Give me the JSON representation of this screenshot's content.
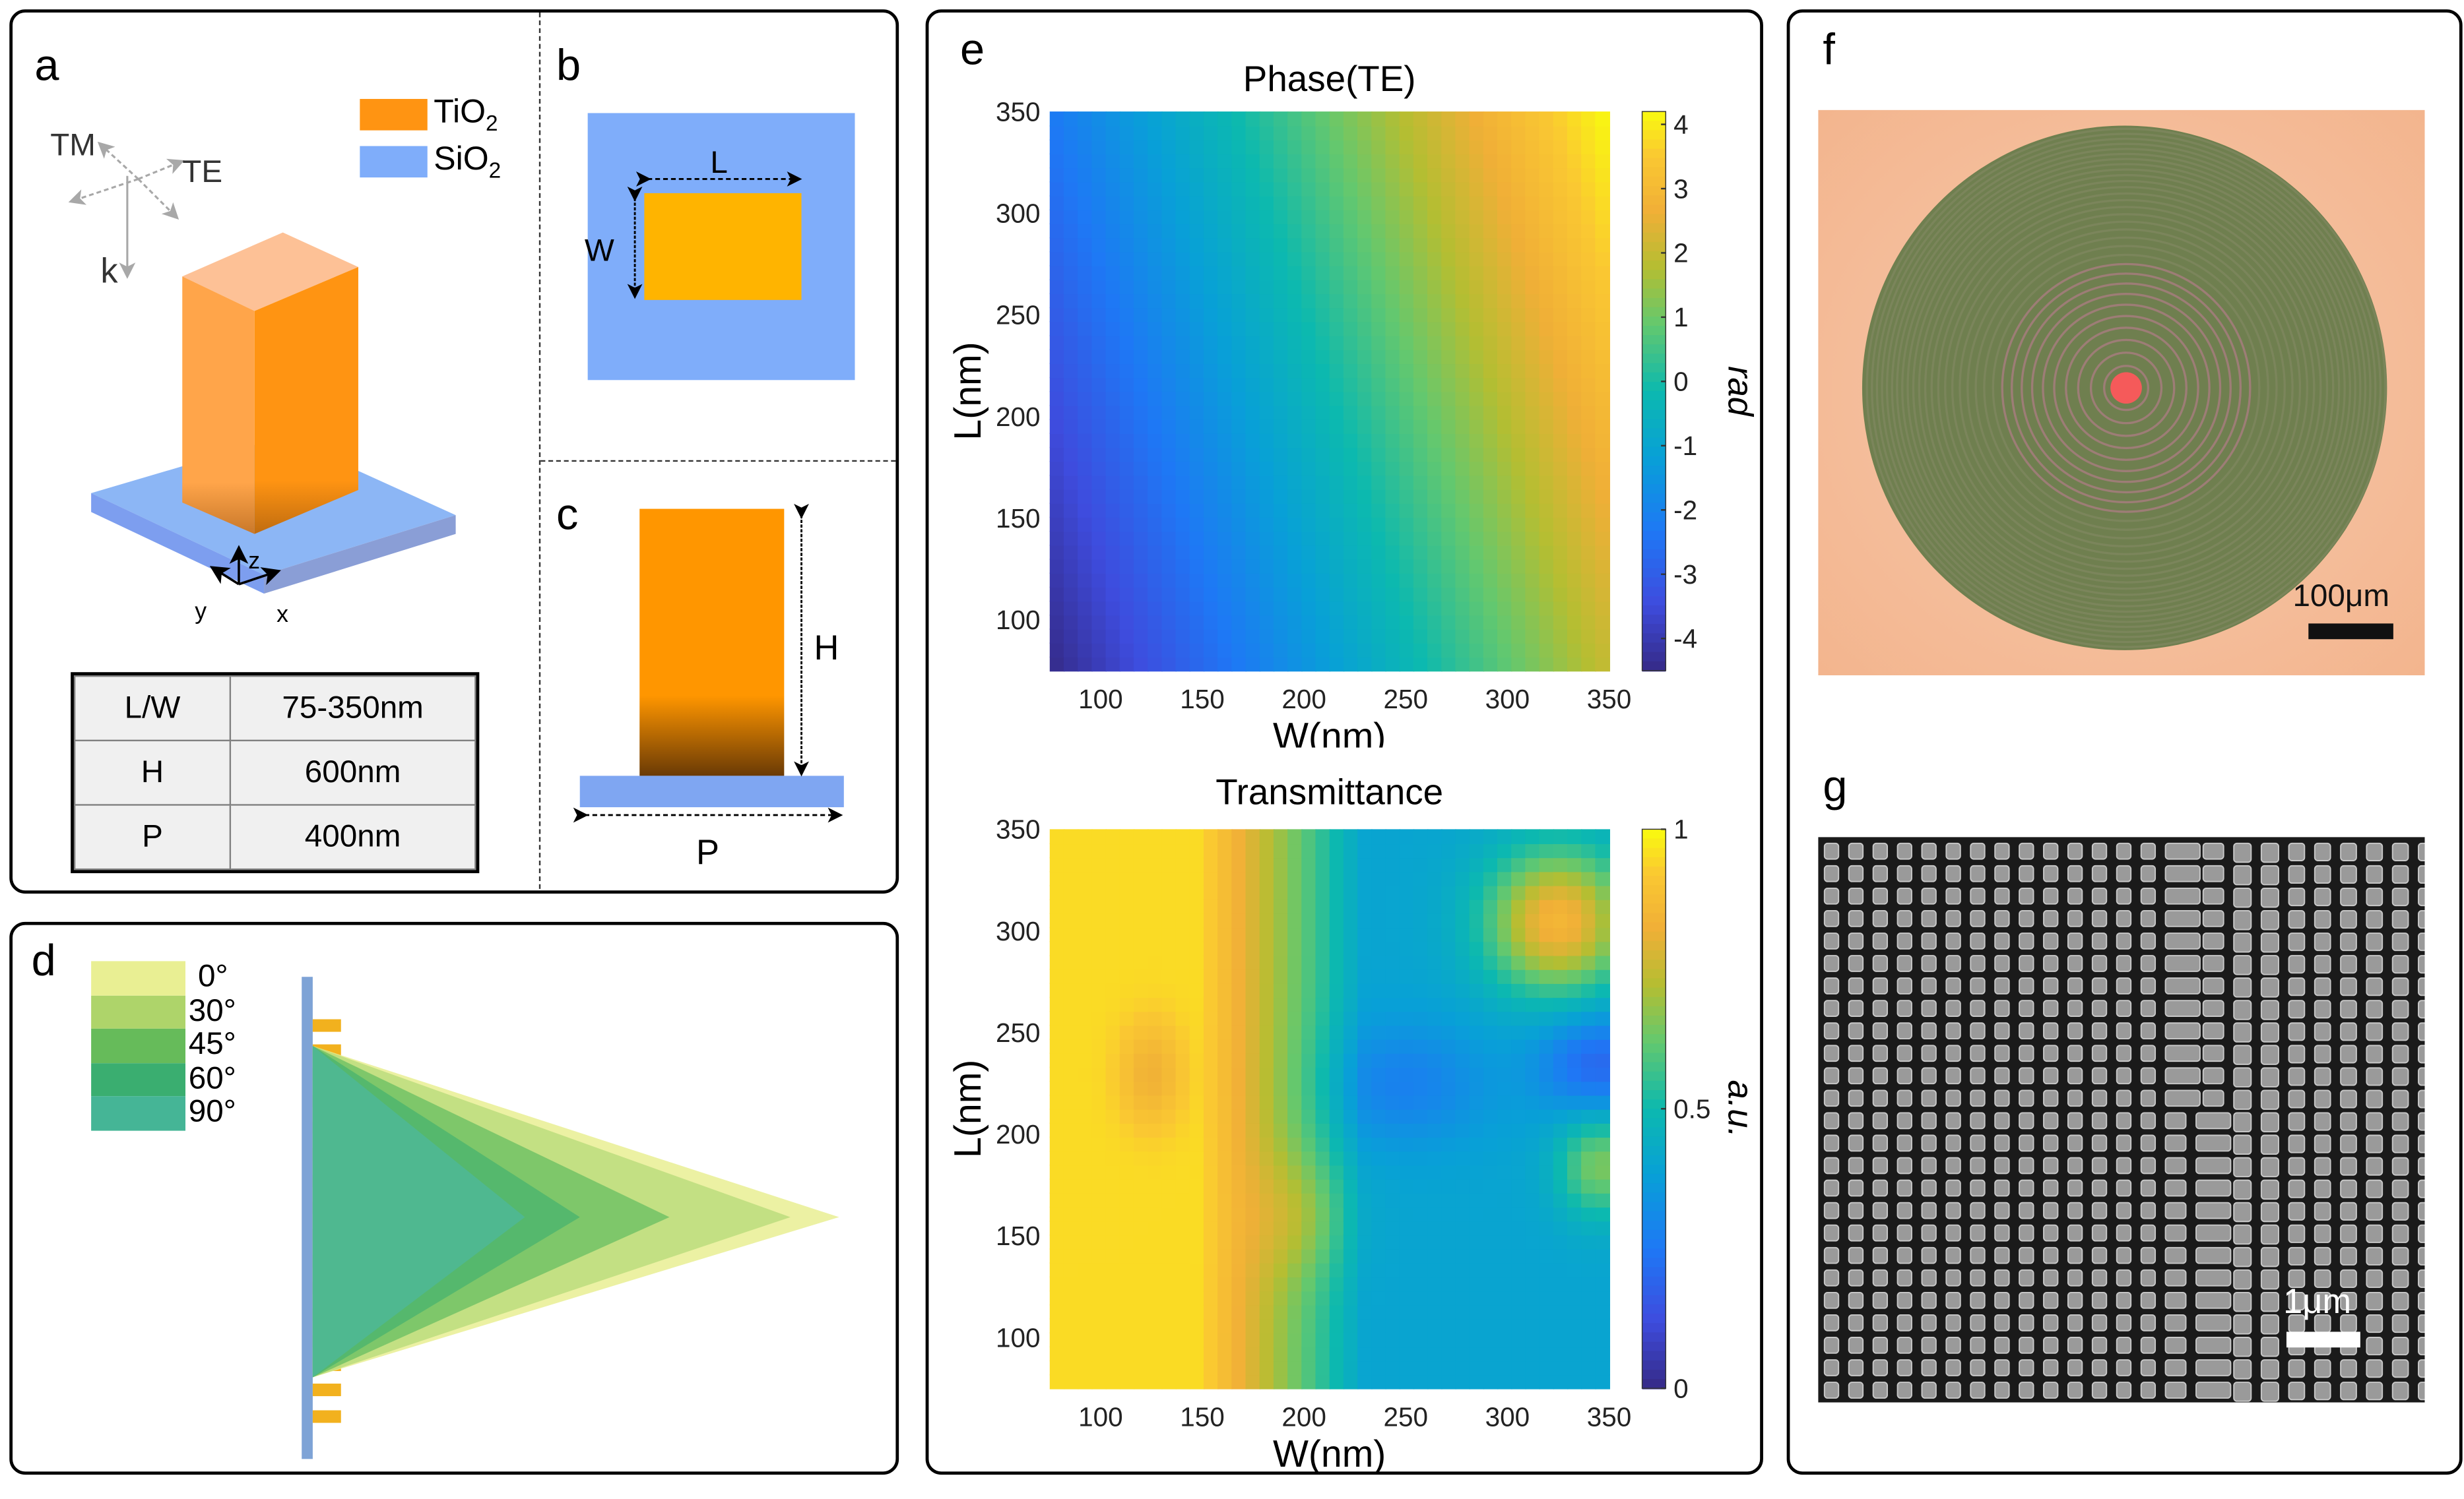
{
  "panels": {
    "a": {
      "label": "a",
      "legend": [
        {
          "name": "TiO",
          "sub": "2",
          "color": "#FF9412"
        },
        {
          "name": "SiO",
          "sub": "2",
          "color": "#7FADFA"
        }
      ],
      "polarization": {
        "tm": "TM",
        "te": "TE",
        "k": "k"
      },
      "axes": {
        "x": "x",
        "y": "y",
        "z": "z"
      },
      "table": [
        {
          "param": "L/W",
          "value": "75-350nm"
        },
        {
          "param": "H",
          "value": "600nm"
        },
        {
          "param": "P",
          "value": "400nm"
        }
      ]
    },
    "b": {
      "label": "b",
      "dim_l": "L",
      "dim_w": "W"
    },
    "c": {
      "label": "c",
      "dim_h": "H",
      "dim_p": "P"
    },
    "d": {
      "label": "d",
      "legend": [
        {
          "angle": "0°",
          "color": "#E9EF93"
        },
        {
          "angle": "30°",
          "color": "#AED46A"
        },
        {
          "angle": "45°",
          "color": "#66BB5A"
        },
        {
          "angle": "60°",
          "color": "#3AAE70"
        },
        {
          "angle": "90°",
          "color": "#45B596"
        }
      ]
    },
    "e": {
      "label": "e"
    },
    "f": {
      "label": "f",
      "scalebar": "100μm"
    },
    "g": {
      "label": "g",
      "scalebar": "1μm"
    }
  },
  "chart_data": [
    {
      "type": "heatmap",
      "title": "Phase(TE)",
      "xlabel": "W(nm)",
      "ylabel": "L(nm)",
      "xlim": [
        75,
        350
      ],
      "ylim": [
        75,
        350
      ],
      "xticks": [
        "100",
        "150",
        "200",
        "250",
        "300",
        "350"
      ],
      "yticks": [
        "350",
        "300",
        "250",
        "200",
        "150",
        "100"
      ],
      "colorbar": {
        "label": "rad",
        "range": [
          -4.5,
          4.2
        ],
        "ticks": [
          "4",
          "3",
          "2",
          "1",
          "0",
          "-1",
          "-2",
          "-3",
          "-4"
        ]
      },
      "colormap": "parula",
      "description": "Phase increases from about -4.5 rad (small W, small L) to about 4.2 rad (large W, large L); contour band near 0 rad curves from W≈140nm at L=350nm to W≈270nm at L=75nm"
    },
    {
      "type": "heatmap",
      "title": "Transmittance",
      "xlabel": "W(nm)",
      "ylabel": "L(nm)",
      "xlim": [
        75,
        350
      ],
      "ylim": [
        75,
        350
      ],
      "xticks": [
        "100",
        "150",
        "200",
        "250",
        "300",
        "350"
      ],
      "yticks": [
        "350",
        "300",
        "250",
        "200",
        "150",
        "100"
      ],
      "colorbar": {
        "label": "a.u.",
        "range": [
          0,
          1
        ],
        "ticks": [
          "1",
          "0.5",
          "0"
        ]
      },
      "colormap": "parula",
      "description": "High transmittance (~0.9-1) for W < 180nm; low transmittance (~0.3-0.6) region for W 200-350nm, minimum near W=350nm, L=230nm; high region near W=330nm, L=300nm"
    }
  ]
}
